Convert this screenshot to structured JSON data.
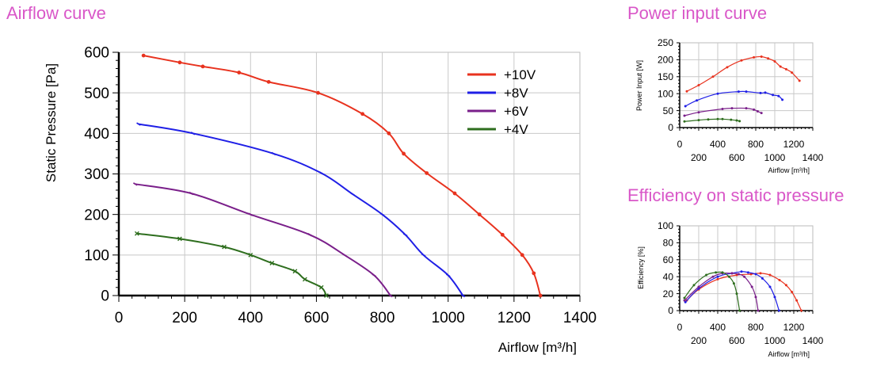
{
  "chart_data": [
    {
      "type": "line",
      "title": "Airflow curve",
      "xlabel": "Airflow [m³/h]",
      "ylabel": "Static Pressure [Pa]",
      "xlim": [
        0,
        1400
      ],
      "ylim": [
        0,
        600
      ],
      "x_ticks": [
        "0",
        "200",
        "400",
        "600",
        "800",
        "1000",
        "1200",
        "1400"
      ],
      "y_ticks": [
        "0",
        "100",
        "200",
        "300",
        "400",
        "500",
        "600"
      ],
      "grid": true,
      "legend_position": "top-right",
      "series": [
        {
          "name": "+10V",
          "color": "#e8321e",
          "marker": "dot",
          "x": [
            75,
            185,
            255,
            365,
            455,
            605,
            740,
            820,
            865,
            935,
            1020,
            1095,
            1165,
            1225,
            1260,
            1280
          ],
          "y": [
            592,
            575,
            565,
            550,
            527,
            500,
            448,
            400,
            350,
            302,
            252,
            200,
            150,
            100,
            55,
            0
          ]
        },
        {
          "name": "+8V",
          "color": "#1f1fe6",
          "marker": "tick",
          "x": [
            60,
            225,
            470,
            615,
            710,
            800,
            870,
            925,
            1000,
            1045
          ],
          "y": [
            423,
            400,
            350,
            302,
            250,
            200,
            150,
            100,
            50,
            0
          ]
        },
        {
          "name": "+6V",
          "color": "#7a1f8a",
          "marker": "tick",
          "x": [
            50,
            220,
            400,
            580,
            685,
            775,
            825
          ],
          "y": [
            275,
            252,
            200,
            150,
            100,
            50,
            0
          ]
        },
        {
          "name": "+4V",
          "color": "#2e6e1e",
          "marker": "cross",
          "x": [
            55,
            185,
            320,
            400,
            465,
            535,
            565,
            615,
            630
          ],
          "y": [
            153,
            140,
            120,
            100,
            80,
            60,
            40,
            20,
            0
          ]
        }
      ]
    },
    {
      "type": "line",
      "title": "Power input curve",
      "xlabel": "Airflow [m³/h]",
      "ylabel": "Power Input [W]",
      "xlim": [
        0,
        1400
      ],
      "ylim": [
        0,
        250
      ],
      "x_ticks_top": [
        "0",
        "400",
        "800",
        "1200"
      ],
      "x_ticks_bottom": [
        "200",
        "600",
        "1000",
        "1400"
      ],
      "y_ticks": [
        "0",
        "50",
        "100",
        "150",
        "200",
        "250"
      ],
      "grid": true,
      "series": [
        {
          "name": "+10V",
          "color": "#e8321e",
          "x": [
            75,
            200,
            350,
            500,
            650,
            780,
            860,
            930,
            1000,
            1060,
            1120,
            1180,
            1260
          ],
          "y": [
            107,
            125,
            150,
            178,
            198,
            207,
            209,
            204,
            195,
            180,
            172,
            162,
            138
          ]
        },
        {
          "name": "+8V",
          "color": "#1f1fe6",
          "x": [
            60,
            180,
            400,
            620,
            700,
            850,
            900,
            980,
            1040,
            1080
          ],
          "y": [
            63,
            80,
            100,
            106,
            106,
            102,
            103,
            96,
            93,
            82
          ]
        },
        {
          "name": "+6V",
          "color": "#7a1f8a",
          "x": [
            50,
            200,
            450,
            550,
            700,
            780,
            820,
            860
          ],
          "y": [
            35,
            45,
            55,
            57,
            57,
            53,
            48,
            43
          ]
        },
        {
          "name": "+4V",
          "color": "#2e6e1e",
          "x": [
            50,
            200,
            300,
            400,
            450,
            540,
            600,
            630
          ],
          "y": [
            18,
            22,
            24,
            25,
            25,
            23,
            21,
            19
          ]
        }
      ]
    },
    {
      "type": "line",
      "title": "Efficiency on static pressure",
      "xlabel": "Airflow [m³/h]",
      "ylabel": "Efficiency [%]",
      "xlim": [
        0,
        1400
      ],
      "ylim": [
        0,
        100
      ],
      "x_ticks_top": [
        "0",
        "400",
        "800",
        "1200"
      ],
      "x_ticks_bottom": [
        "200",
        "600",
        "1000",
        "1400"
      ],
      "y_ticks": [
        "0",
        "20",
        "40",
        "60",
        "80",
        "100"
      ],
      "grid": true,
      "series": [
        {
          "name": "+10V",
          "color": "#e8321e",
          "x": [
            75,
            200,
            400,
            600,
            750,
            850,
            950,
            1050,
            1120,
            1180,
            1230,
            1280
          ],
          "y": [
            12,
            25,
            37,
            42,
            43,
            44,
            42,
            36,
            30,
            22,
            12,
            0
          ]
        },
        {
          "name": "+8V",
          "color": "#1f1fe6",
          "x": [
            60,
            200,
            400,
            550,
            650,
            720,
            800,
            870,
            950,
            1000,
            1045
          ],
          "y": [
            10,
            26,
            40,
            44,
            46,
            45,
            43,
            38,
            28,
            16,
            0
          ]
        },
        {
          "name": "+6V",
          "color": "#7a1f8a",
          "x": [
            50,
            200,
            350,
            450,
            550,
            620,
            680,
            760,
            800,
            825
          ],
          "y": [
            12,
            28,
            40,
            44,
            44,
            43,
            40,
            28,
            16,
            0
          ]
        },
        {
          "name": "+4V",
          "color": "#2e6e1e",
          "x": [
            50,
            150,
            280,
            380,
            450,
            520,
            570,
            600,
            630
          ],
          "y": [
            15,
            30,
            42,
            45,
            45,
            40,
            32,
            20,
            0
          ]
        }
      ]
    }
  ]
}
